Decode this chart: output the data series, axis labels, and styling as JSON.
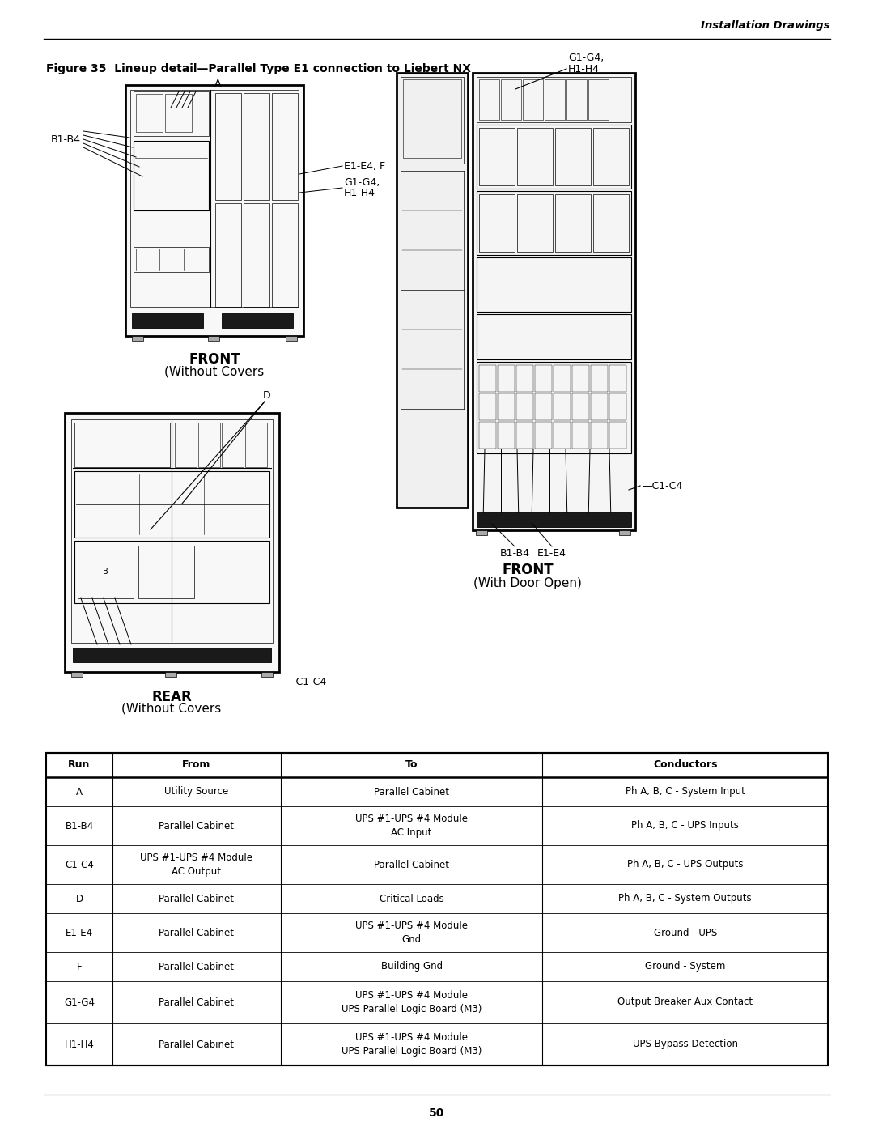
{
  "page_header_right": "Installation Drawings",
  "figure_title": "Figure 35  Lineup detail—Parallel Type E1 connection to Liebert NX",
  "page_number": "50",
  "table_headers": [
    "Run",
    "From",
    "To",
    "Conductors"
  ],
  "table_rows": [
    [
      "A",
      "Utility Source",
      "Parallel Cabinet",
      "Ph A, B, C - System Input"
    ],
    [
      "B1-B4",
      "Parallel Cabinet",
      "UPS #1-UPS #4 Module\nAC Input",
      "Ph A, B, C - UPS Inputs"
    ],
    [
      "C1-C4",
      "UPS #1-UPS #4 Module\nAC Output",
      "Parallel Cabinet",
      "Ph A, B, C - UPS Outputs"
    ],
    [
      "D",
      "Parallel Cabinet",
      "Critical Loads",
      "Ph A, B, C - System Outputs"
    ],
    [
      "E1-E4",
      "Parallel Cabinet",
      "UPS #1-UPS #4 Module\nGnd",
      "Ground - UPS"
    ],
    [
      "F",
      "Parallel Cabinet",
      "Building Gnd",
      "Ground - System"
    ],
    [
      "G1-G4",
      "Parallel Cabinet",
      "UPS #1-UPS #4 Module\nUPS Parallel Logic Board (M3)",
      "Output Breaker Aux Contact"
    ],
    [
      "H1-H4",
      "Parallel Cabinet",
      "UPS #1-UPS #4 Module\nUPS Parallel Logic Board (M3)",
      "UPS Bypass Detection"
    ]
  ],
  "bg_color": "#ffffff"
}
